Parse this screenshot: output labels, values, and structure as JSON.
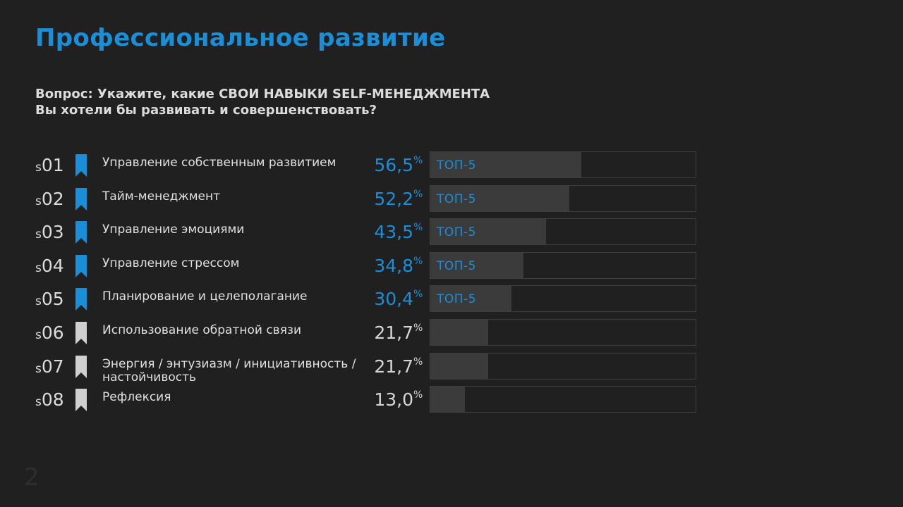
{
  "title": "Профессиональное развитие",
  "question": {
    "line1": "Вопрос: Укажите, какие СВОИ НАВЫКИ SELF-МЕНЕДЖМЕНТА",
    "line2": "Вы хотели бы развивать и совершенствовать?"
  },
  "page_number": "2",
  "colors": {
    "accent": "#1a8fd8",
    "bar": "#3b3b3b",
    "inactive": "#d0d0d0",
    "background": "#202020"
  },
  "chart_data": {
    "type": "bar",
    "orientation": "horizontal",
    "xlim": [
      0,
      100
    ],
    "categories": [
      "Управление собственным развитием",
      "Тайм-менеджмент",
      "Управление эмоциями",
      "Управление стрессом",
      "Планирование и целеполагание",
      "Использование обратной связи",
      "Энергия / энтузиазм / инициативность / настойчивость",
      "Рефлексия"
    ],
    "values": [
      56.5,
      52.2,
      43.5,
      34.8,
      30.4,
      21.7,
      21.7,
      13.0
    ],
    "rows": [
      {
        "prefix": "s",
        "num": "01",
        "label": "Управление собственным развитием",
        "value": 56.5,
        "value_label": "56,5",
        "unit": "%",
        "badge": "ТОП-5",
        "top": true
      },
      {
        "prefix": "s",
        "num": "02",
        "label": "Тайм-менеджмент",
        "value": 52.2,
        "value_label": "52,2",
        "unit": "%",
        "badge": "ТОП-5",
        "top": true
      },
      {
        "prefix": "s",
        "num": "03",
        "label": "Управление эмоциями",
        "value": 43.5,
        "value_label": "43,5",
        "unit": "%",
        "badge": "ТОП-5",
        "top": true
      },
      {
        "prefix": "s",
        "num": "04",
        "label": "Управление стрессом",
        "value": 34.8,
        "value_label": "34,8",
        "unit": "%",
        "badge": "ТОП-5",
        "top": true
      },
      {
        "prefix": "s",
        "num": "05",
        "label": "Планирование и целеполагание",
        "value": 30.4,
        "value_label": "30,4",
        "unit": "%",
        "badge": "ТОП-5",
        "top": true
      },
      {
        "prefix": "s",
        "num": "06",
        "label": "Использование обратной связи",
        "value": 21.7,
        "value_label": "21,7",
        "unit": "%",
        "badge": "",
        "top": false
      },
      {
        "prefix": "s",
        "num": "07",
        "label": "Энергия / энтузиазм / инициативность / настойчивость",
        "value": 21.7,
        "value_label": "21,7",
        "unit": "%",
        "badge": "",
        "top": false
      },
      {
        "prefix": "s",
        "num": "08",
        "label": "Рефлексия",
        "value": 13.0,
        "value_label": "13,0",
        "unit": "%",
        "badge": "",
        "top": false
      }
    ]
  }
}
